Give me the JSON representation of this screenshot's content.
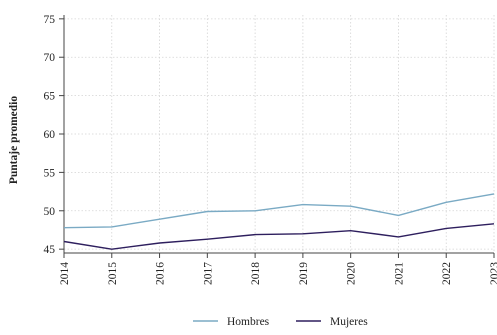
{
  "chart_data": {
    "type": "line",
    "title": "",
    "xlabel": "",
    "ylabel": "Puntaje promedio",
    "x": [
      2014,
      2015,
      2016,
      2017,
      2018,
      2019,
      2020,
      2021,
      2022,
      2023
    ],
    "x_tick_labels": [
      "2014",
      "2015",
      "2016",
      "2017",
      "2018",
      "2019",
      "2020",
      "2021",
      "2022",
      "2023"
    ],
    "y_ticks": [
      45,
      50,
      55,
      60,
      65,
      70,
      75
    ],
    "y_tick_labels": [
      "45",
      "50",
      "55",
      "60",
      "65",
      "70",
      "75"
    ],
    "xlim": [
      2014,
      2023
    ],
    "ylim": [
      44.5,
      75.5
    ],
    "grid": true,
    "legend_position": "bottom",
    "series": [
      {
        "name": "Hombres",
        "color": "#7aaac4",
        "values": [
          47.8,
          47.9,
          48.9,
          49.9,
          50.0,
          50.8,
          50.6,
          49.4,
          51.1,
          52.2
        ]
      },
      {
        "name": "Mujeres",
        "color": "#2e1f5e",
        "values": [
          46.0,
          45.0,
          45.8,
          46.3,
          46.9,
          47.0,
          47.4,
          46.6,
          47.7,
          48.3
        ]
      }
    ]
  }
}
